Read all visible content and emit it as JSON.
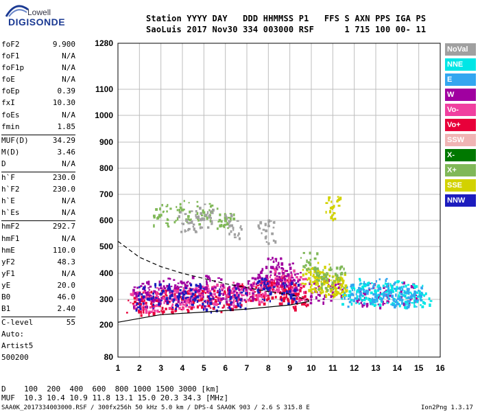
{
  "logo": {
    "top": "Lowell",
    "main": "DIGISONDE"
  },
  "header": {
    "line1": "Station YYYY DAY   DDD HHMMSS P1   FFS S AXN PPS IGA PS",
    "line2": "SaoLuis 2017 Nov30 334 003000 RSF      1 715 100 00- 11"
  },
  "params": [
    [
      {
        "label": "foF2",
        "value": "9.900"
      },
      {
        "label": "foF1",
        "value": "N/A"
      },
      {
        "label": "foF1p",
        "value": "N/A"
      },
      {
        "label": "foE",
        "value": "N/A"
      },
      {
        "label": "foEp",
        "value": "0.39"
      },
      {
        "label": "fxI",
        "value": "10.30"
      },
      {
        "label": "foEs",
        "value": "N/A"
      },
      {
        "label": "fmin",
        "value": "1.85"
      }
    ],
    [
      {
        "label": "MUF(D)",
        "value": "34.29"
      },
      {
        "label": "M(D)",
        "value": "3.46"
      },
      {
        "label": "D",
        "value": "N/A"
      }
    ],
    [
      {
        "label": "h`F",
        "value": "230.0"
      },
      {
        "label": "h`F2",
        "value": "230.0"
      },
      {
        "label": "h`E",
        "value": "N/A"
      },
      {
        "label": "h`Es",
        "value": "N/A"
      }
    ],
    [
      {
        "label": "hmF2",
        "value": "292.7"
      },
      {
        "label": "hmF1",
        "value": "N/A"
      },
      {
        "label": "hmE",
        "value": "110.0"
      },
      {
        "label": "yF2",
        "value": "48.3"
      },
      {
        "label": "yF1",
        "value": "N/A"
      },
      {
        "label": "yE",
        "value": "20.0"
      },
      {
        "label": "B0",
        "value": "46.0"
      },
      {
        "label": "B1",
        "value": "2.40"
      }
    ],
    [
      {
        "label": "C-level",
        "value": "55"
      }
    ]
  ],
  "auto": {
    "line1": "Auto:",
    "line2": "Artist5",
    "line3": "500200"
  },
  "legend": [
    {
      "label": "NoVal",
      "color": "#a0a0a0"
    },
    {
      "label": "NNE",
      "color": "#00e6e6"
    },
    {
      "label": "E",
      "color": "#33a6f0"
    },
    {
      "label": "W",
      "color": "#a000a0"
    },
    {
      "label": "Vo-",
      "color": "#f040a0"
    },
    {
      "label": "Vo+",
      "color": "#e8003a"
    },
    {
      "label": "SSW",
      "color": "#f0b4b4"
    },
    {
      "label": "X-",
      "color": "#007800"
    },
    {
      "label": "X+",
      "color": "#80b858"
    },
    {
      "label": "SSE",
      "color": "#d2d200"
    },
    {
      "label": "NNW",
      "color": "#1c1cbe"
    }
  ],
  "footer": {
    "line1": "D    100  200  400  600  800 1000 1500 3000 [km]",
    "line2": "MUF  10.3 10.4 10.9 11.8 13.1 15.0 20.3 34.3 [MHz]",
    "line3": "SAA0K_2017334003000.RSF / 300fx256h 50 kHz 5.0 km / DPS-4 SAA0K 903 / 2.6 S 315.8 E",
    "version": "Ion2Png 1.3.17"
  },
  "chart_data": {
    "type": "scatter",
    "subtype": "ionogram",
    "xlabel": "",
    "ylabel": "",
    "x_ticks": [
      1,
      2,
      3,
      4,
      5,
      6,
      7,
      8,
      9,
      10,
      11,
      12,
      13,
      14,
      15,
      16
    ],
    "y_ticks": [
      80,
      200,
      300,
      400,
      500,
      600,
      700,
      800,
      900,
      1000,
      1100,
      1280
    ],
    "xlim": [
      1,
      16
    ],
    "y_scale": "non-linear (ionogram height scale)",
    "grid": true,
    "series": [
      {
        "name": "Vo+",
        "color": "#e8003a",
        "points": [
          [
            1.8,
            290
          ],
          [
            2.3,
            285
          ],
          [
            2.8,
            295
          ],
          [
            3.3,
            290
          ],
          [
            4.0,
            300
          ],
          [
            4.6,
            305
          ],
          [
            5.2,
            310
          ],
          [
            5.8,
            300
          ],
          [
            6.4,
            310
          ],
          [
            7.0,
            320
          ],
          [
            7.6,
            330
          ],
          [
            8.0,
            340
          ],
          [
            8.3,
            360
          ],
          [
            8.6,
            350
          ],
          [
            8.9,
            330
          ],
          [
            9.2,
            320
          ],
          [
            9.5,
            300
          ]
        ]
      },
      {
        "name": "Vo-",
        "color": "#f040a0",
        "points": [
          [
            1.9,
            300
          ],
          [
            2.5,
            298
          ],
          [
            3.1,
            305
          ],
          [
            3.7,
            310
          ],
          [
            4.3,
            305
          ],
          [
            4.9,
            315
          ],
          [
            5.5,
            320
          ],
          [
            6.1,
            315
          ],
          [
            6.7,
            325
          ],
          [
            7.3,
            335
          ],
          [
            7.9,
            360
          ],
          [
            8.4,
            380
          ],
          [
            8.8,
            370
          ],
          [
            9.3,
            345
          ]
        ]
      },
      {
        "name": "W",
        "color": "#a000a0",
        "points": [
          [
            2.0,
            320
          ],
          [
            2.7,
            330
          ],
          [
            3.4,
            340
          ],
          [
            4.1,
            330
          ],
          [
            4.8,
            350
          ],
          [
            5.4,
            340
          ],
          [
            6.2,
            330
          ],
          [
            6.9,
            345
          ],
          [
            7.7,
            380
          ],
          [
            8.2,
            420
          ],
          [
            8.7,
            400
          ],
          [
            9.1,
            370
          ],
          [
            10.2,
            330
          ],
          [
            11.0,
            340
          ],
          [
            12.5,
            320
          ],
          [
            13.5,
            315
          ],
          [
            14.5,
            325
          ]
        ]
      },
      {
        "name": "NNE",
        "color": "#00e6e6",
        "points": [
          [
            11.8,
            330
          ],
          [
            12.3,
            340
          ],
          [
            12.8,
            325
          ],
          [
            13.3,
            320
          ],
          [
            13.8,
            330
          ],
          [
            14.3,
            315
          ],
          [
            14.8,
            320
          ],
          [
            15.1,
            318
          ]
        ]
      },
      {
        "name": "E",
        "color": "#33a6f0",
        "points": [
          [
            11.9,
            320
          ],
          [
            12.6,
            330
          ],
          [
            13.2,
            340
          ],
          [
            13.7,
            325
          ],
          [
            14.2,
            320
          ],
          [
            14.7,
            315
          ]
        ]
      },
      {
        "name": "SSE",
        "color": "#d2d200",
        "points": [
          [
            9.9,
            380
          ],
          [
            10.2,
            370
          ],
          [
            10.5,
            360
          ],
          [
            10.8,
            350
          ],
          [
            11.1,
            345
          ],
          [
            11.3,
            370
          ],
          [
            10.4,
            400
          ],
          [
            11.0,
            650
          ]
        ]
      },
      {
        "name": "X+",
        "color": "#80b858",
        "points": [
          [
            3.0,
            620
          ],
          [
            4.0,
            640
          ],
          [
            5.0,
            630
          ],
          [
            6.0,
            610
          ],
          [
            9.9,
            440
          ],
          [
            10.6,
            380
          ],
          [
            11.2,
            390
          ]
        ]
      },
      {
        "name": "NNW",
        "color": "#1c1cbe",
        "points": [
          [
            2.2,
            310
          ],
          [
            3.0,
            320
          ],
          [
            3.8,
            310
          ],
          [
            4.5,
            320
          ],
          [
            5.3,
            300
          ],
          [
            6.5,
            305
          ],
          [
            7.8,
            340
          ],
          [
            9.0,
            330
          ]
        ]
      },
      {
        "name": "NoVal",
        "color": "#a0a0a0",
        "points": [
          [
            4.2,
            600
          ],
          [
            5.1,
            620
          ],
          [
            6.3,
            580
          ],
          [
            7.9,
            560
          ]
        ]
      }
    ],
    "curves": [
      {
        "name": "profile-solid",
        "style": "solid",
        "points": [
          [
            1.0,
            210
          ],
          [
            3.0,
            240
          ],
          [
            5.0,
            250
          ],
          [
            7.0,
            262
          ],
          [
            9.0,
            278
          ],
          [
            9.9,
            292
          ]
        ]
      },
      {
        "name": "profile-dashed",
        "style": "dashed",
        "points": [
          [
            1.0,
            520
          ],
          [
            2.0,
            460
          ],
          [
            3.0,
            425
          ],
          [
            4.0,
            400
          ],
          [
            5.0,
            380
          ],
          [
            6.0,
            360
          ],
          [
            7.0,
            345
          ],
          [
            8.0,
            330
          ],
          [
            9.0,
            320
          ],
          [
            9.9,
            295
          ]
        ]
      }
    ]
  }
}
